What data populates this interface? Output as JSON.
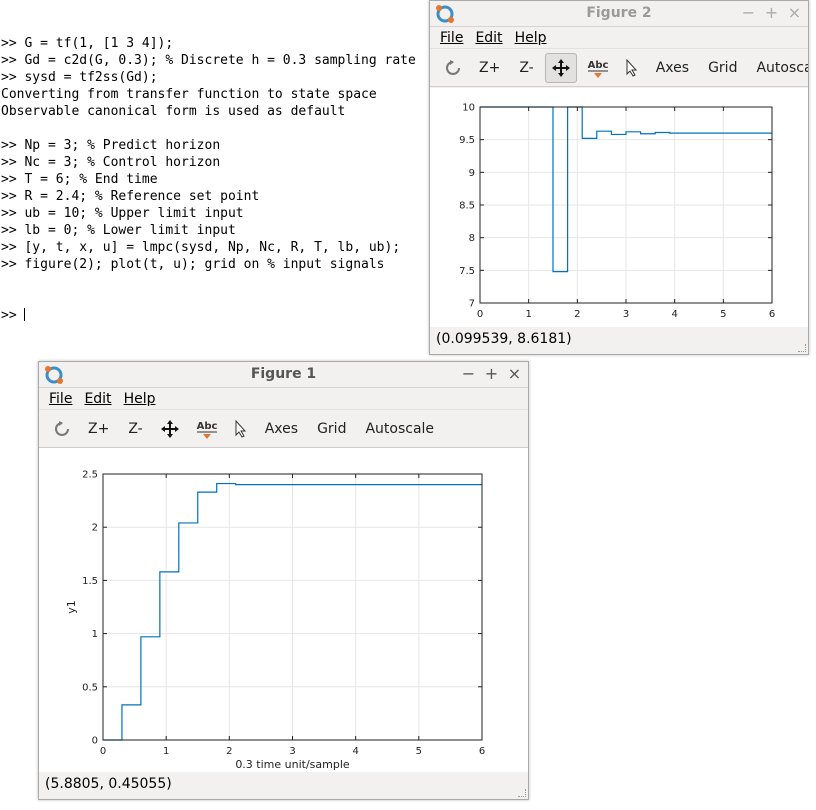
{
  "terminal": {
    "lines": [
      ">> G = tf(1, [1 3 4]);",
      ">> Gd = c2d(G, 0.3); % Discrete h = 0.3 sampling rate",
      ">> sysd = tf2ss(Gd);",
      "Converting from transfer function to state space",
      "Observable canonical form is used as default",
      "",
      ">> Np = 3; % Predict horizon",
      ">> Nc = 3; % Control horizon",
      ">> T = 6; % End time",
      ">> R = 2.4; % Reference set point",
      ">> ub = 10; % Upper limit input",
      ">> lb = 0; % Lower limit input",
      ">> [y, t, x, u] = lmpc(sysd, Np, Nc, R, T, lb, ub);",
      ">> figure(2); plot(t, u); grid on % input signals"
    ],
    "prompt": ">> "
  },
  "figure2": {
    "title": "Figure 2",
    "menu": {
      "file": "File",
      "edit": "Edit",
      "help": "Help"
    },
    "toolbar": {
      "zoom_in": "Z+",
      "zoom_out": "Z-",
      "axes": "Axes",
      "grid": "Grid",
      "autoscale": "Autoscale",
      "text_tool": "Abc"
    },
    "status": "(0.099539, 8.6181)"
  },
  "figure1": {
    "title": "Figure 1",
    "menu": {
      "file": "File",
      "edit": "Edit",
      "help": "Help"
    },
    "toolbar": {
      "zoom_in": "Z+",
      "zoom_out": "Z-",
      "axes": "Axes",
      "grid": "Grid",
      "autoscale": "Autoscale",
      "text_tool": "Abc"
    },
    "status": "(5.8805, 0.45055)"
  },
  "chart_data": [
    {
      "id": "figure2-plot",
      "type": "line",
      "step": true,
      "xlabel": "",
      "ylabel": "",
      "xlim": [
        0,
        6
      ],
      "ylim": [
        7,
        10
      ],
      "xticks": [
        "0",
        "1",
        "2",
        "3",
        "4",
        "5",
        "6"
      ],
      "yticks": [
        "7",
        "7.5",
        "8",
        "8.5",
        "9",
        "9.5",
        "10"
      ],
      "xtick_values": [
        0,
        1,
        2,
        3,
        4,
        5,
        6
      ],
      "ytick_values": [
        7,
        7.5,
        8,
        8.5,
        9,
        9.5,
        10
      ],
      "grid": true,
      "color": "#0072bd",
      "series": [
        {
          "x": [
            0,
            0.3,
            0.6,
            0.9,
            1.2,
            1.5,
            1.8,
            2.1,
            2.4,
            2.7,
            3.0,
            3.3,
            3.6,
            3.9,
            4.2,
            4.5,
            4.8,
            5.1,
            5.4,
            5.7,
            6.0
          ],
          "values": [
            10,
            10,
            10,
            10,
            10,
            7.48,
            10,
            9.52,
            9.63,
            9.58,
            9.62,
            9.59,
            9.61,
            9.6,
            9.6,
            9.6,
            9.6,
            9.6,
            9.6,
            9.6,
            9.6
          ]
        }
      ]
    },
    {
      "id": "figure1-plot",
      "type": "line",
      "step": true,
      "xlabel": "0.3 time unit/sample",
      "ylabel": "y1",
      "xlim": [
        0,
        6
      ],
      "ylim": [
        0,
        2.5
      ],
      "xticks": [
        "0",
        "1",
        "2",
        "3",
        "4",
        "5",
        "6"
      ],
      "yticks": [
        "0",
        "0.5",
        "1",
        "1.5",
        "2",
        "2.5"
      ],
      "xtick_values": [
        0,
        1,
        2,
        3,
        4,
        5,
        6
      ],
      "ytick_values": [
        0,
        0.5,
        1,
        1.5,
        2,
        2.5
      ],
      "grid": true,
      "color": "#0072bd",
      "series": [
        {
          "x": [
            0,
            0.3,
            0.6,
            0.9,
            1.2,
            1.5,
            1.8,
            2.1,
            2.4,
            2.7,
            3.0,
            3.3,
            3.6,
            3.9,
            4.2,
            4.5,
            4.8,
            5.1,
            5.4,
            5.7,
            6.0
          ],
          "values": [
            0,
            0.33,
            0.97,
            1.58,
            2.04,
            2.33,
            2.41,
            2.4,
            2.4,
            2.4,
            2.4,
            2.4,
            2.4,
            2.4,
            2.4,
            2.4,
            2.4,
            2.4,
            2.4,
            2.4,
            2.4
          ]
        }
      ]
    }
  ]
}
